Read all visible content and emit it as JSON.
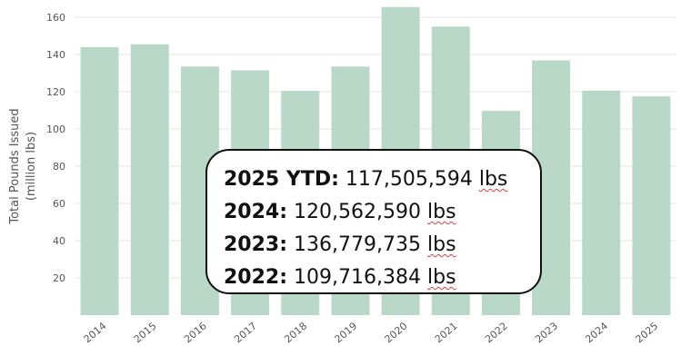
{
  "chart_data": {
    "type": "bar",
    "categories": [
      "2014",
      "2015",
      "2016",
      "2017",
      "2018",
      "2019",
      "2020",
      "2021",
      "2022",
      "2023",
      "2024",
      "2025"
    ],
    "values": [
      144,
      145.5,
      133.5,
      131.5,
      120.5,
      133.5,
      165.5,
      155,
      109.7,
      136.8,
      120.6,
      117.5
    ],
    "ylabel_line1": "Total Pounds Issued",
    "ylabel_line2": "(million lbs)",
    "ylim": [
      0,
      165
    ],
    "yticks": [
      "20",
      "40",
      "60",
      "80",
      "100",
      "120",
      "140",
      "160"
    ],
    "bar_color": "#b9d8c8",
    "grid": true,
    "legend": "none"
  },
  "callout": {
    "lines": [
      {
        "label": "2025 YTD:",
        "value": "117,505,594",
        "unit": "lbs"
      },
      {
        "label": "2024:",
        "value": "120,562,590",
        "unit": "lbs"
      },
      {
        "label": "2023:",
        "value": "136,779,735",
        "unit": "lbs"
      },
      {
        "label": "2022:",
        "value": "109,716,384",
        "unit": "lbs"
      }
    ]
  }
}
